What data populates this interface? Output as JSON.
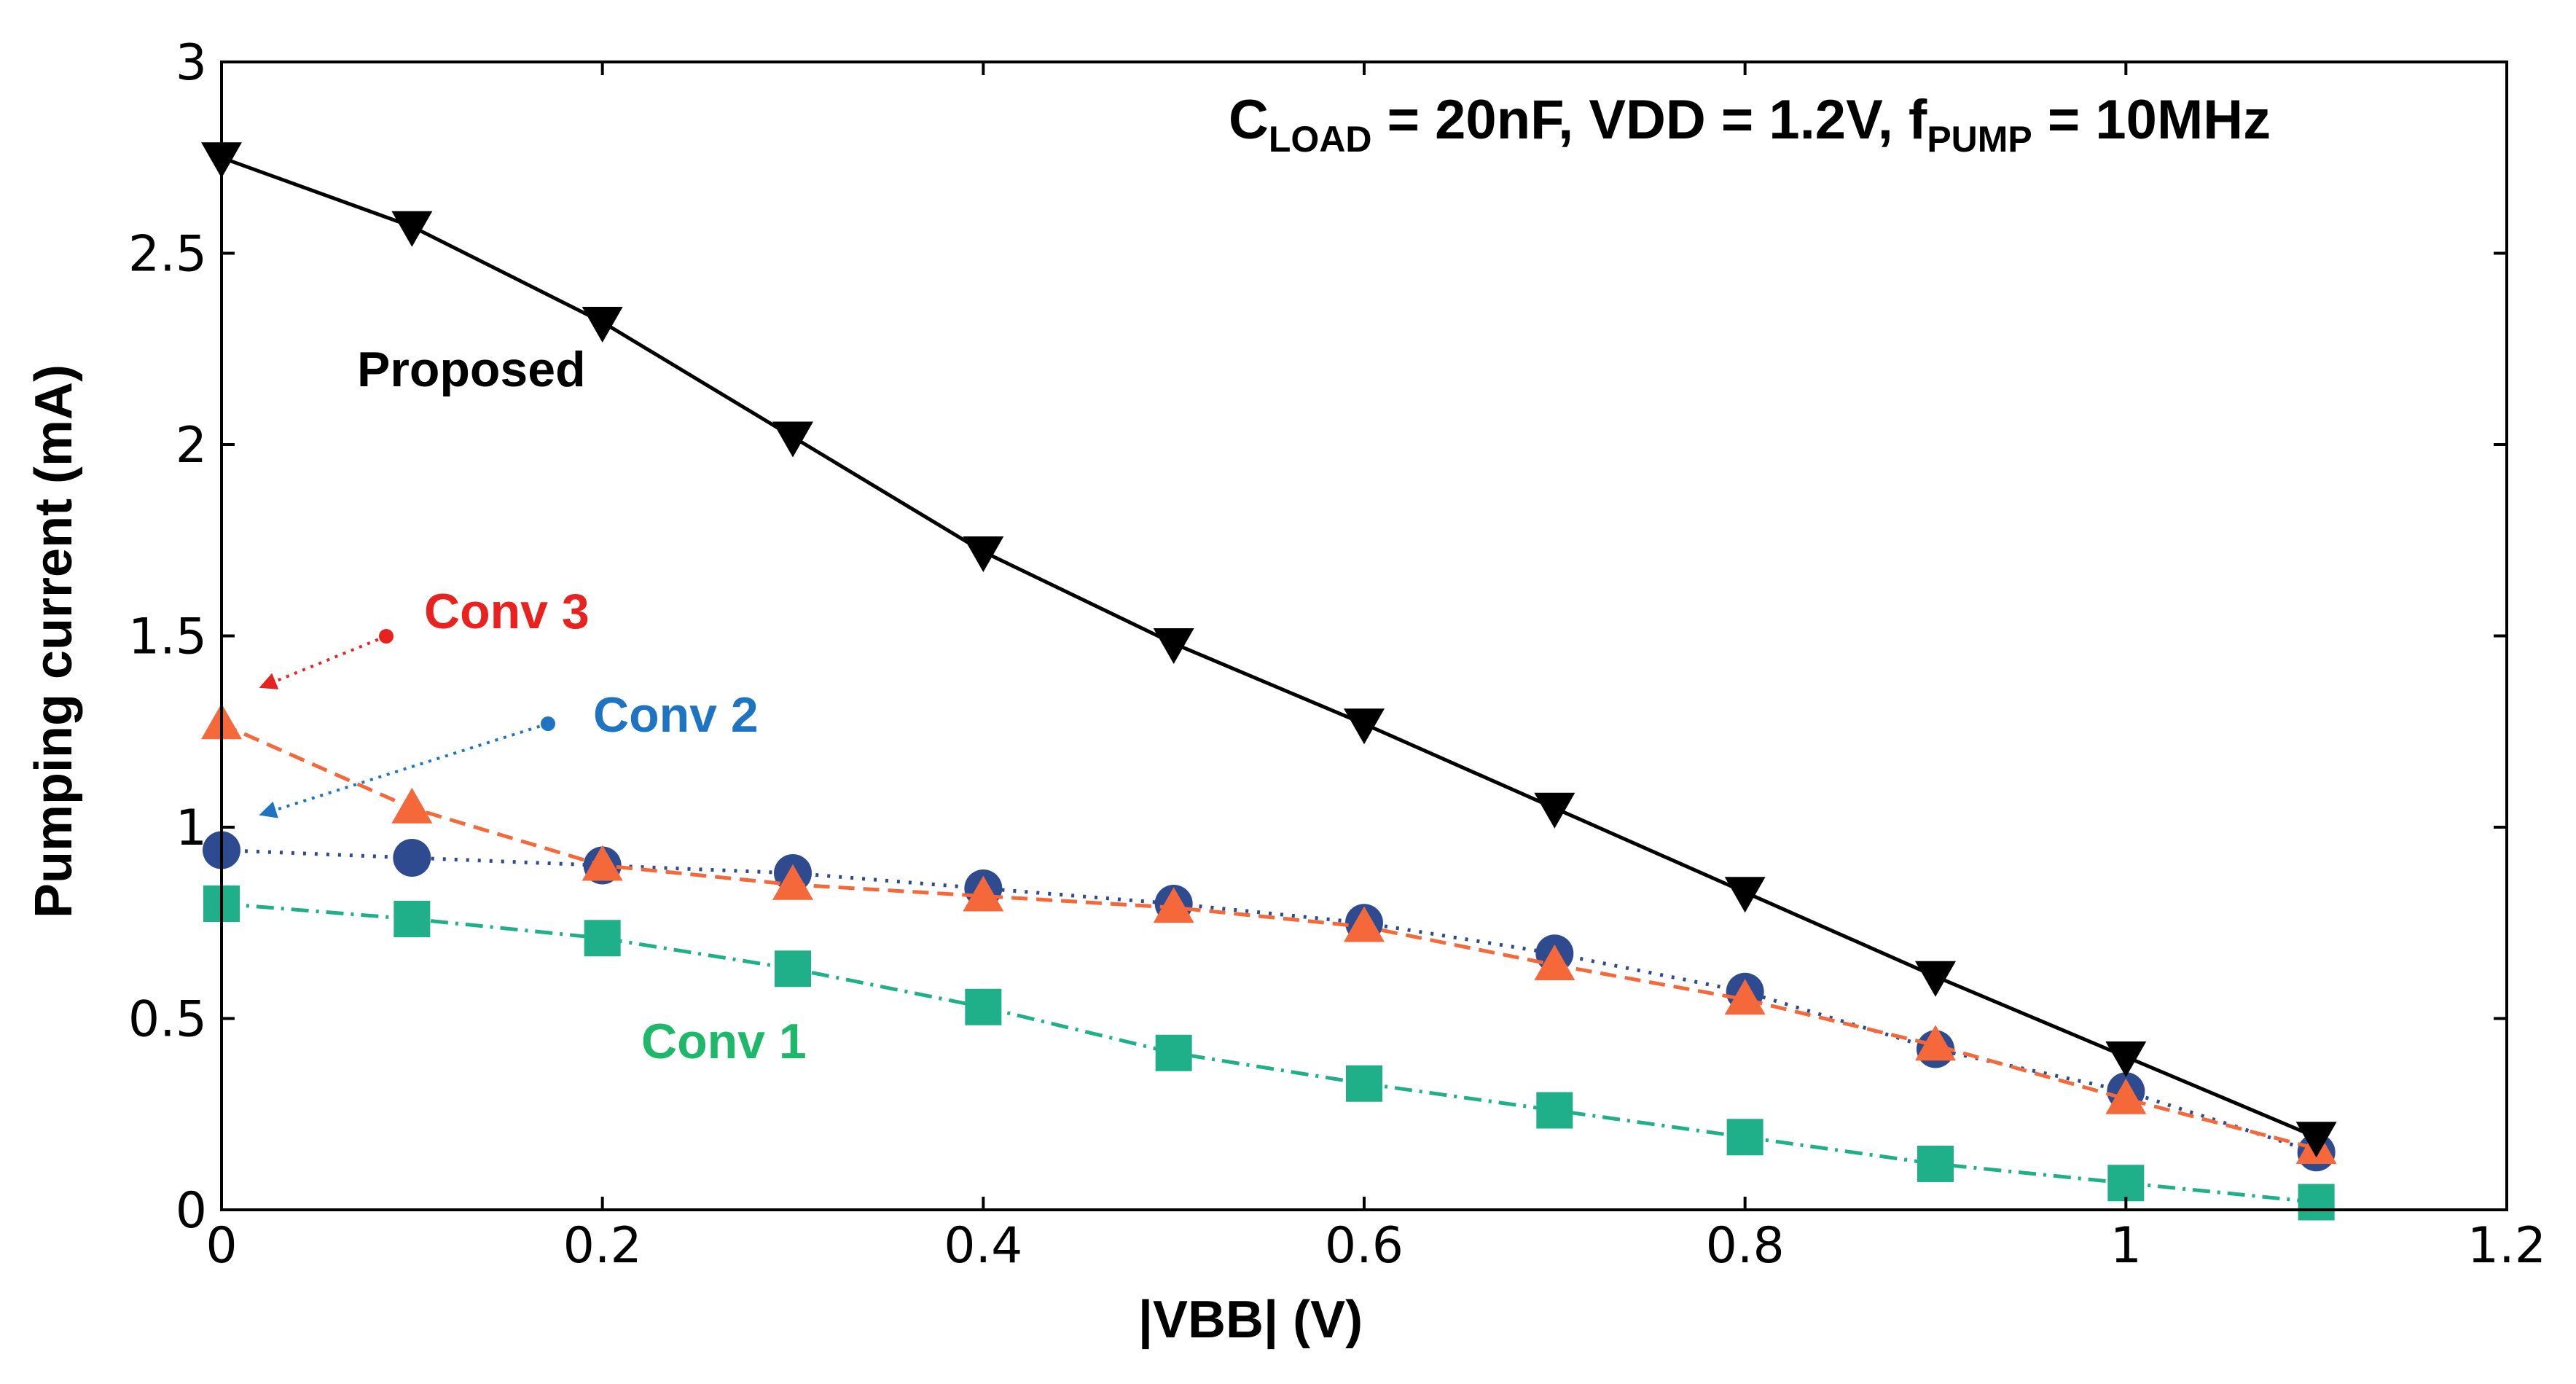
{
  "chart_data": {
    "type": "line",
    "title": "",
    "xlabel": "|VBB| (V)",
    "ylabel": "Pumping current (mA)",
    "xlim": [
      0,
      1.2
    ],
    "ylim": [
      0,
      3
    ],
    "x_ticks": [
      "0",
      "0.2",
      "0.4",
      "0.6",
      "0.8",
      "1",
      "1.2"
    ],
    "y_ticks": [
      "0",
      "0.5",
      "1",
      "1.5",
      "2",
      "2.5",
      "3"
    ],
    "grid": false,
    "x": [
      0,
      0.1,
      0.2,
      0.3,
      0.4,
      0.5,
      0.6,
      0.7,
      0.8,
      0.9,
      1.0,
      1.1
    ],
    "series": [
      {
        "name": "Proposed",
        "color": "#000000",
        "marker": "triangle-down",
        "line_style": "solid",
        "values": [
          2.75,
          2.57,
          2.32,
          2.02,
          1.72,
          1.48,
          1.27,
          1.05,
          0.83,
          0.61,
          0.4,
          0.19
        ]
      },
      {
        "name": "Conv 2",
        "color": "#2f4b8f",
        "marker": "circle",
        "line_style": "dotted",
        "values": [
          0.94,
          0.92,
          0.9,
          0.88,
          0.84,
          0.8,
          0.75,
          0.67,
          0.57,
          0.42,
          0.31,
          0.15
        ]
      },
      {
        "name": "Conv 3",
        "color": "#f4683a",
        "marker": "triangle-up",
        "line_style": "dashed",
        "values": [
          1.27,
          1.05,
          0.9,
          0.85,
          0.82,
          0.79,
          0.74,
          0.64,
          0.55,
          0.43,
          0.29,
          0.16
        ]
      },
      {
        "name": "Conv 1",
        "color": "#1fb08a",
        "marker": "square",
        "line_style": "dash-dot",
        "values": [
          0.8,
          0.76,
          0.71,
          0.63,
          0.53,
          0.41,
          0.33,
          0.26,
          0.19,
          0.12,
          0.07,
          0.02
        ]
      }
    ],
    "annotations": {
      "condition": {
        "parts": [
          {
            "text": "C",
            "sub": false
          },
          {
            "text": "LOAD",
            "sub": true
          },
          {
            "text": " = 20nF, VDD = 1.2V, f",
            "sub": false
          },
          {
            "text": "PUMP",
            "sub": true
          },
          {
            "text": " = 10MHz",
            "sub": false
          }
        ]
      },
      "labels": [
        {
          "series": "Proposed",
          "text": "Proposed",
          "color": "#000000"
        },
        {
          "series": "Conv 3",
          "text": "Conv 3",
          "color": "#e8231f"
        },
        {
          "series": "Conv 2",
          "text": "Conv 2",
          "color": "#1f74c1"
        },
        {
          "series": "Conv 1",
          "text": "Conv 1",
          "color": "#1fb86a"
        }
      ]
    }
  }
}
